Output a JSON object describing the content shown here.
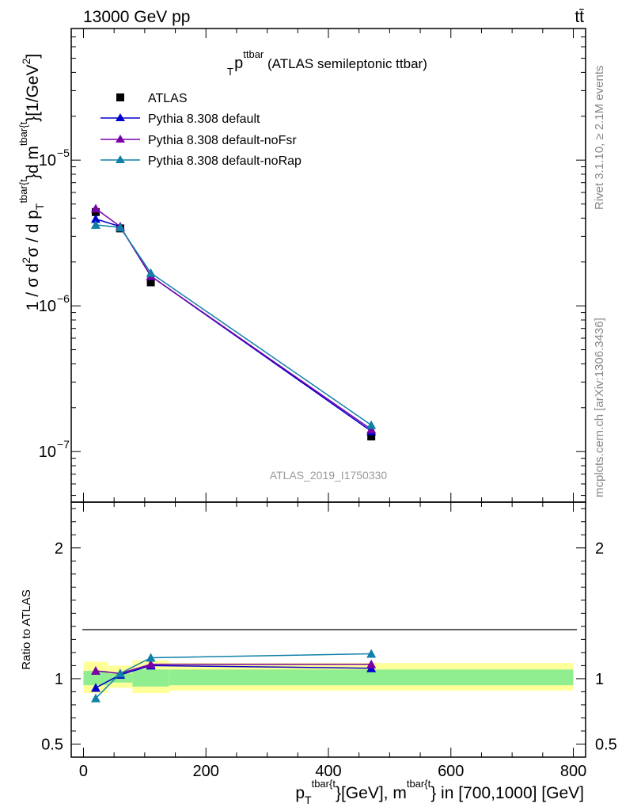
{
  "header": {
    "left": "13000 GeV pp",
    "right": "tt̄"
  },
  "side_labels": {
    "rivet": "Rivet 3.1.10, ≥ 2.1M events",
    "mcplots": "mcplots.cern.ch [arXiv:1306.3436]"
  },
  "colors": {
    "atlas": "#000000",
    "default": "#0000cc",
    "noFsr": "#7a00a8",
    "noRap": "#1080a8",
    "band_inner": "#90ee90",
    "band_outer": "#ffff99"
  },
  "chart_data": [
    {
      "type": "line",
      "title_main": "p",
      "title_sub": "T",
      "title_sup": "ttbar",
      "title_rest": " (ATLAS semileptonic ttbar)",
      "watermark": "ATLAS_2019_I1750330",
      "ylabel": "1 / σ d²σ / d p_T^tbar{t} d m^tbar{t} [1/GeV²]",
      "ylabel_parts": {
        "a": "1 / σ d",
        "sup2": "2",
        "b": "σ / d p",
        "subT": "T",
        "supt": "tbar{t",
        "c": "}d m",
        "supt2": "tbar{t",
        "d": "}[1/GeV",
        "sup3": "2",
        "e": "]"
      },
      "y_scale": "log",
      "ylim": [
        4.5e-08,
        8e-05
      ],
      "xlim": [
        -20,
        820
      ],
      "y_ticks": [
        {
          "v": 1e-05,
          "base": "10",
          "exp": "−5"
        },
        {
          "v": 1e-06,
          "base": "10",
          "exp": "−6"
        },
        {
          "v": 1e-07,
          "base": "10",
          "exp": "−7"
        }
      ],
      "legend": {
        "placement": "top-left",
        "entries": [
          "ATLAS",
          "Pythia 8.308 default",
          "Pythia 8.308 default-noFsr",
          "Pythia 8.308 default-noRap"
        ]
      },
      "x": [
        20,
        60,
        110,
        470
      ],
      "series": [
        {
          "name": "ATLAS",
          "values": [
            4.4e-06,
            3.4e-06,
            1.45e-06,
            1.27e-07
          ],
          "marker": "square"
        },
        {
          "name": "Pythia 8.308 default",
          "values": [
            3.95e-06,
            3.5e-06,
            1.6e-06,
            1.38e-07
          ],
          "marker": "triangle"
        },
        {
          "name": "Pythia 8.308 default-noFsr",
          "values": [
            4.65e-06,
            3.5e-06,
            1.6e-06,
            1.42e-07
          ],
          "marker": "triangle"
        },
        {
          "name": "Pythia 8.308 default-noRap",
          "values": [
            3.6e-06,
            3.45e-06,
            1.68e-06,
            1.52e-07
          ],
          "marker": "triangle"
        }
      ]
    },
    {
      "type": "line",
      "ylabel": "Ratio to ATLAS",
      "xlabel_parts": {
        "a": "p",
        "subT": "T",
        "supt": "tbar{t",
        "b": "}[GeV], m",
        "supt2": "tbar{t",
        "c": "} in [700,1000] [GeV]"
      },
      "ylim": [
        0.4,
        2.35
      ],
      "xlim": [
        -20,
        820
      ],
      "y_ticks": [
        0.5,
        1,
        2
      ],
      "x_ticks": [
        0,
        200,
        400,
        600,
        800
      ],
      "bands": [
        {
          "x0": 0,
          "x1": 40,
          "inner": [
            0.95,
            1.06
          ],
          "outer": [
            0.89,
            1.13
          ]
        },
        {
          "x0": 40,
          "x1": 80,
          "inner": [
            0.97,
            1.04
          ],
          "outer": [
            0.93,
            1.1
          ]
        },
        {
          "x0": 80,
          "x1": 140,
          "inner": [
            0.94,
            1.07
          ],
          "outer": [
            0.89,
            1.14
          ]
        },
        {
          "x0": 140,
          "x1": 800,
          "inner": [
            0.95,
            1.07
          ],
          "outer": [
            0.91,
            1.12
          ]
        }
      ],
      "x": [
        20,
        60,
        110,
        470
      ],
      "series": [
        {
          "name": "Pythia 8.308 default",
          "values": [
            0.93,
            1.03,
            1.1,
            1.08
          ]
        },
        {
          "name": "Pythia 8.308 default-noFsr",
          "values": [
            1.06,
            1.04,
            1.11,
            1.11
          ]
        },
        {
          "name": "Pythia 8.308 default-noRap",
          "values": [
            0.85,
            1.04,
            1.16,
            1.19
          ]
        }
      ]
    }
  ]
}
